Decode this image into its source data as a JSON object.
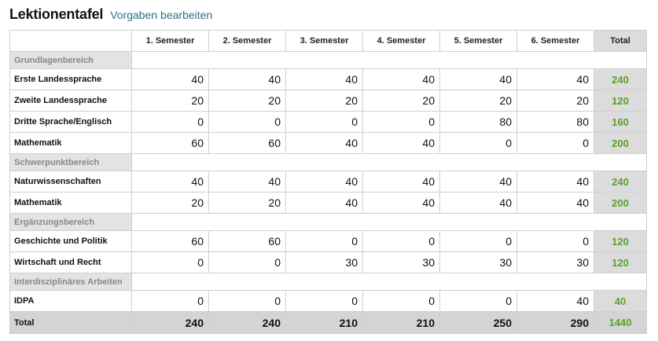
{
  "header": {
    "title": "Lektionentafel",
    "edit_link": "Vorgaben bearbeiten"
  },
  "table": {
    "columns": [
      "1. Semester",
      "2. Semester",
      "3. Semester",
      "4. Semester",
      "5. Semester",
      "6. Semester"
    ],
    "total_header": "Total",
    "sections": [
      {
        "label": "Grundlagenbereich",
        "rows": [
          {
            "label": "Erste Landessprache",
            "values": [
              "40",
              "40",
              "40",
              "40",
              "40",
              "40"
            ],
            "total": "240"
          },
          {
            "label": "Zweite Landessprache",
            "values": [
              "20",
              "20",
              "20",
              "20",
              "20",
              "20"
            ],
            "total": "120"
          },
          {
            "label": "Dritte Sprache/Englisch",
            "values": [
              "0",
              "0",
              "0",
              "0",
              "80",
              "80"
            ],
            "total": "160"
          },
          {
            "label": "Mathematik",
            "values": [
              "60",
              "60",
              "40",
              "40",
              "0",
              "0"
            ],
            "total": "200"
          }
        ]
      },
      {
        "label": "Schwerpunktbereich",
        "rows": [
          {
            "label": "Naturwissenschaften",
            "values": [
              "40",
              "40",
              "40",
              "40",
              "40",
              "40"
            ],
            "total": "240"
          },
          {
            "label": "Mathematik",
            "values": [
              "20",
              "20",
              "40",
              "40",
              "40",
              "40"
            ],
            "total": "200"
          }
        ]
      },
      {
        "label": "Ergänzungsbereich",
        "rows": [
          {
            "label": "Geschichte und Politik",
            "values": [
              "60",
              "60",
              "0",
              "0",
              "0",
              "0"
            ],
            "total": "120"
          },
          {
            "label": "Wirtschaft und Recht",
            "values": [
              "0",
              "0",
              "30",
              "30",
              "30",
              "30"
            ],
            "total": "120"
          }
        ]
      },
      {
        "label": "Interdisziplinäres Arbeiten",
        "rows": [
          {
            "label": "IDPA",
            "values": [
              "0",
              "0",
              "0",
              "0",
              "0",
              "40"
            ],
            "total": "40"
          }
        ]
      }
    ],
    "sum_row": {
      "label": "Total",
      "values": [
        "240",
        "240",
        "210",
        "210",
        "250",
        "290"
      ],
      "total": "1440"
    }
  },
  "colors": {
    "link": "#2f7086",
    "total_green": "#5aa02c",
    "total_column_bg": "#dcdcdc",
    "section_bg": "#e3e3e3"
  }
}
